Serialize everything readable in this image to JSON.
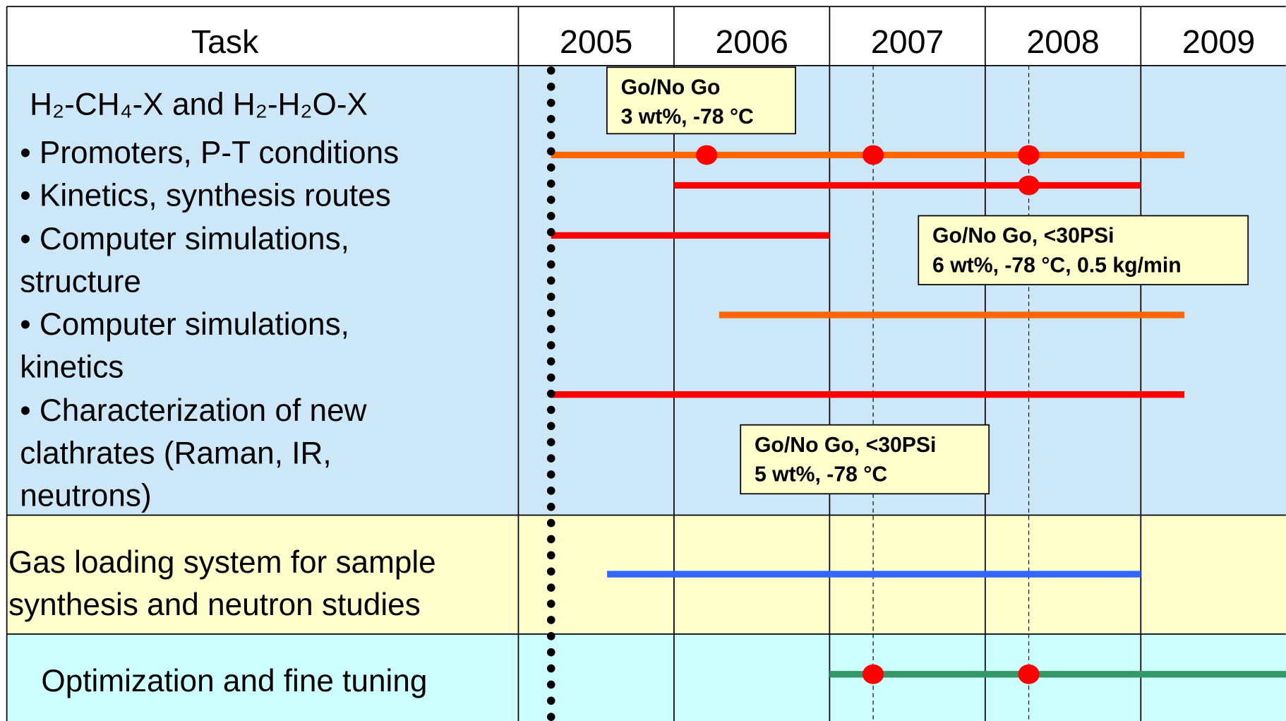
{
  "chart_data": {
    "type": "gantt",
    "task_header": "Task",
    "categories": [
      "2005",
      "2006",
      "2007",
      "2008",
      "2009"
    ],
    "xlim": [
      2005,
      2010
    ],
    "xticks": [
      2005,
      2006,
      2007,
      2008,
      2009
    ],
    "band_colors": [
      "#cce8f8",
      "#ffffcc",
      "#ccffff"
    ],
    "task_labels": [
      "H₂-CH₄-X and  H₂-H₂O-X",
      "• Promoters, P-T conditions",
      "• Kinetics, synthesis routes",
      "• Computer simulations,",
      "structure",
      "• Computer simulations,",
      "kinetics",
      "• Characterization of new",
      "clathrates (Raman, IR,",
      "neutrons)",
      "Gas loading system for sample",
      "synthesis and neutron studies",
      "Optimization and fine tuning"
    ],
    "bars": [
      {
        "start": 2005.21,
        "end": 2009.28,
        "color": "#ff6600",
        "milestones": [
          2006.21,
          2007.28,
          2008.28
        ]
      },
      {
        "start": 2006.0,
        "end": 2009.0,
        "color": "#ff0000",
        "milestones": [
          2008.28
        ]
      },
      {
        "start": 2005.21,
        "end": 2007.0,
        "color": "#ff0000",
        "milestones": []
      },
      {
        "start": 2006.29,
        "end": 2009.28,
        "color": "#ff6600",
        "milestones": []
      },
      {
        "start": 2005.21,
        "end": 2009.28,
        "color": "#ff0000",
        "milestones": []
      },
      {
        "start": 2005.57,
        "end": 2009.0,
        "color": "#3366ff",
        "milestones": []
      },
      {
        "start": 2007.0,
        "end": 2010.0,
        "color": "#339966",
        "milestones": [
          2007.28,
          2008.28
        ]
      }
    ],
    "milestone_color": "#ff0000",
    "status_line": 2005.21,
    "milestone_lines": [
      2007.28,
      2008.28
    ],
    "callouts": [
      {
        "lines": [
          "Go/No Go",
          "3 wt%, -78 °C"
        ]
      },
      {
        "lines": [
          "Go/No Go, <30PSi",
          "6 wt%, -78 °C, 0.5 kg/min"
        ]
      },
      {
        "lines": [
          "Go/No Go, <30PSi",
          "5 wt%, -78 °C"
        ]
      }
    ],
    "callout_color": "#ffffcc"
  }
}
